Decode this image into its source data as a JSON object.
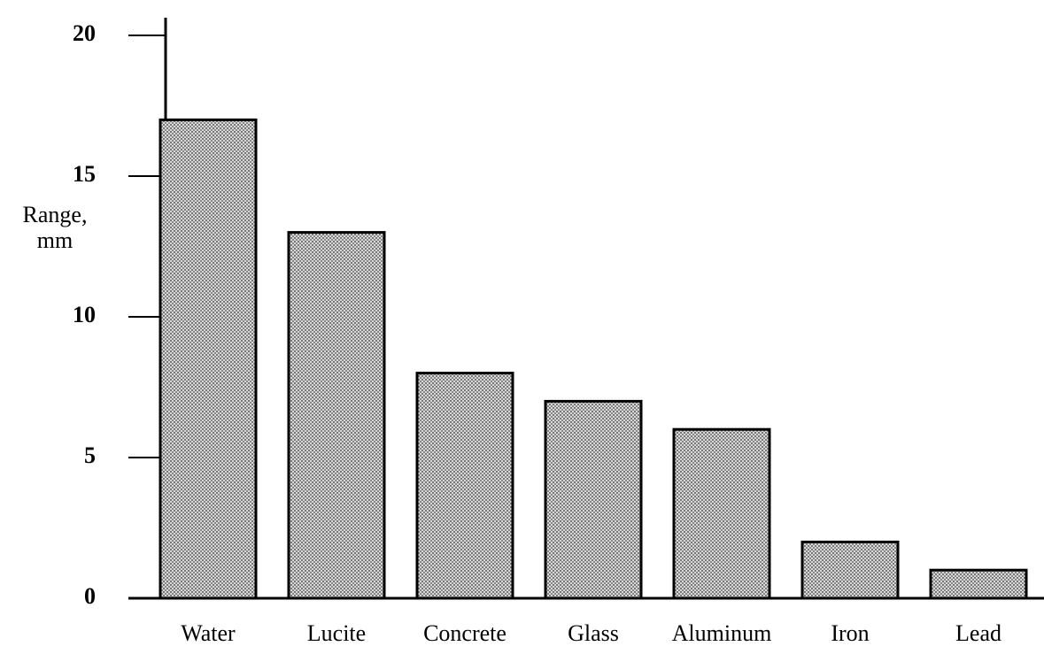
{
  "chart_data": {
    "type": "bar",
    "y_label": [
      "Range,",
      "mm"
    ],
    "categories": [
      "Water",
      "Lucite",
      "Concrete",
      "Glass",
      "Aluminum",
      "Iron",
      "Lead"
    ],
    "values": [
      17,
      13,
      8,
      7,
      6,
      2,
      1
    ],
    "color": "#a8a8a8",
    "ylim": [
      0,
      20
    ],
    "yticks": [
      0,
      5,
      10,
      15,
      20
    ],
    "grid": false
  }
}
